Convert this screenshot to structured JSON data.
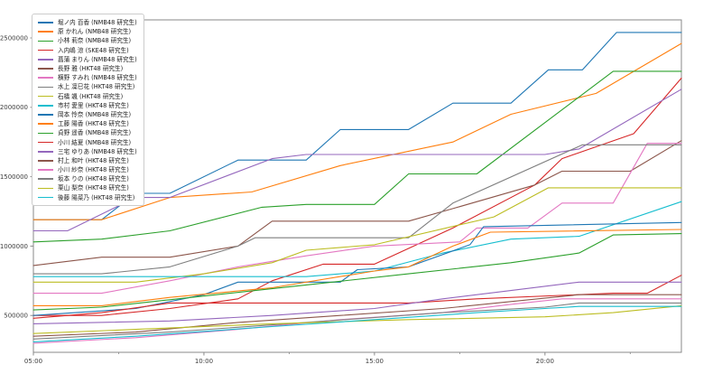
{
  "figure": {
    "background": "#ffffff",
    "axis_color": "#8a8a8a",
    "tick_label_color": "#3c3c3c"
  },
  "chart_data": {
    "type": "line",
    "title": "",
    "xlabel": "",
    "ylabel": "",
    "grid": false,
    "legend_position": "upper-left",
    "x_unit": "time (hour of day)",
    "xlim": [
      5,
      24
    ],
    "ylim": [
      230000,
      2630000
    ],
    "x_ticks": [
      {
        "h": 5,
        "label": "05:00"
      },
      {
        "h": 10,
        "label": "10:00"
      },
      {
        "h": 15,
        "label": "15:00"
      },
      {
        "h": 20,
        "label": "20:00"
      }
    ],
    "x_minor_ticks": [
      7.5,
      12.5,
      17.5,
      22.5
    ],
    "y_ticks": [
      {
        "v": 500000,
        "label": "500000"
      },
      {
        "v": 1000000,
        "label": "1000000"
      },
      {
        "v": 1500000,
        "label": "1500000"
      },
      {
        "v": 2000000,
        "label": "2000000"
      },
      {
        "v": 2500000,
        "label": "2500000"
      }
    ],
    "series": [
      {
        "name": "堀ノ内 百香 (NMB48 研究生)",
        "color": "#1f77b4",
        "points": [
          [
            5,
            1190000
          ],
          [
            7,
            1190000
          ],
          [
            8,
            1380000
          ],
          [
            9,
            1380000
          ],
          [
            11,
            1620000
          ],
          [
            13,
            1620000
          ],
          [
            14,
            1840000
          ],
          [
            16,
            1840000
          ],
          [
            17.3,
            2030000
          ],
          [
            19,
            2030000
          ],
          [
            20.1,
            2270000
          ],
          [
            21.1,
            2270000
          ],
          [
            22.1,
            2540000
          ],
          [
            24,
            2540000
          ]
        ]
      },
      {
        "name": "原 かれん (NMB48 研究生)",
        "color": "#ff7f0e",
        "points": [
          [
            5,
            1190000
          ],
          [
            7,
            1190000
          ],
          [
            9,
            1350000
          ],
          [
            11.4,
            1390000
          ],
          [
            14,
            1580000
          ],
          [
            17.3,
            1750000
          ],
          [
            19,
            1950000
          ],
          [
            21.5,
            2100000
          ],
          [
            24,
            2460000
          ]
        ]
      },
      {
        "name": "小林 莉奈 (NMB48 研究生)",
        "color": "#2ca02c",
        "points": [
          [
            5,
            1030000
          ],
          [
            7,
            1050000
          ],
          [
            9,
            1110000
          ],
          [
            11.7,
            1280000
          ],
          [
            13,
            1300000
          ],
          [
            15,
            1300000
          ],
          [
            16,
            1520000
          ],
          [
            18,
            1520000
          ],
          [
            22,
            2260000
          ],
          [
            24,
            2260000
          ]
        ]
      },
      {
        "name": "入内嶋 涼 (SKE48 研究生)",
        "color": "#d62728",
        "points": [
          [
            5,
            500000
          ],
          [
            7,
            500000
          ],
          [
            9,
            550000
          ],
          [
            11,
            620000
          ],
          [
            12,
            750000
          ],
          [
            13.5,
            870000
          ],
          [
            15,
            870000
          ],
          [
            17.3,
            1130000
          ],
          [
            19.7,
            1440000
          ],
          [
            20.5,
            1630000
          ],
          [
            22.6,
            1810000
          ],
          [
            24,
            2210000
          ]
        ]
      },
      {
        "name": "菖蒲 まりん (NMB48 研究生)",
        "color": "#9467bd",
        "points": [
          [
            5,
            1110000
          ],
          [
            6,
            1110000
          ],
          [
            8,
            1350000
          ],
          [
            9,
            1350000
          ],
          [
            12,
            1630000
          ],
          [
            13,
            1660000
          ],
          [
            20,
            1660000
          ],
          [
            21,
            1700000
          ],
          [
            24,
            2130000
          ]
        ]
      },
      {
        "name": "長野 雅 (HKT48 研究生)",
        "color": "#8c564b",
        "points": [
          [
            5,
            860000
          ],
          [
            7,
            920000
          ],
          [
            9,
            920000
          ],
          [
            11,
            1000000
          ],
          [
            12,
            1180000
          ],
          [
            16,
            1180000
          ],
          [
            17.3,
            1270000
          ],
          [
            19.7,
            1440000
          ],
          [
            20.5,
            1540000
          ],
          [
            22.5,
            1540000
          ],
          [
            24,
            1760000
          ]
        ]
      },
      {
        "name": "横野 すみれ (NMB48 研究生)",
        "color": "#e377c2",
        "points": [
          [
            5,
            660000
          ],
          [
            7,
            660000
          ],
          [
            9,
            750000
          ],
          [
            11,
            850000
          ],
          [
            13,
            930000
          ],
          [
            15,
            1000000
          ],
          [
            17.5,
            1030000
          ],
          [
            18,
            1130000
          ],
          [
            19.5,
            1130000
          ],
          [
            20.5,
            1310000
          ],
          [
            22,
            1310000
          ],
          [
            23,
            1740000
          ],
          [
            24,
            1740000
          ]
        ]
      },
      {
        "name": "水上 凜巳花 (HKT48 研究生)",
        "color": "#7f7f7f",
        "points": [
          [
            5,
            800000
          ],
          [
            7,
            800000
          ],
          [
            9,
            850000
          ],
          [
            11,
            1000000
          ],
          [
            11.5,
            1060000
          ],
          [
            16,
            1060000
          ],
          [
            17.3,
            1310000
          ],
          [
            21.1,
            1730000
          ],
          [
            24,
            1730000
          ]
        ]
      },
      {
        "name": "石橋 颯 (HKT48 研究生)",
        "color": "#bcbd22",
        "points": [
          [
            5,
            740000
          ],
          [
            8,
            740000
          ],
          [
            10,
            800000
          ],
          [
            12,
            880000
          ],
          [
            13,
            970000
          ],
          [
            15,
            1010000
          ],
          [
            18.5,
            1210000
          ],
          [
            20.1,
            1420000
          ],
          [
            24,
            1420000
          ]
        ]
      },
      {
        "name": "市村 愛里 (HKT48 研究生)",
        "color": "#17becf",
        "points": [
          [
            5,
            780000
          ],
          [
            13,
            780000
          ],
          [
            15,
            820000
          ],
          [
            17,
            950000
          ],
          [
            19,
            1050000
          ],
          [
            21,
            1070000
          ],
          [
            24,
            1320000
          ]
        ]
      },
      {
        "name": "岡本 怜奈 (NMB48 研究生)",
        "color": "#1f77b4",
        "points": [
          [
            5,
            500000
          ],
          [
            8,
            550000
          ],
          [
            10,
            650000
          ],
          [
            11,
            740000
          ],
          [
            14,
            740000
          ],
          [
            14.5,
            830000
          ],
          [
            16,
            850000
          ],
          [
            17.8,
            1010000
          ],
          [
            18.2,
            1140000
          ],
          [
            24,
            1170000
          ]
        ]
      },
      {
        "name": "工藤 陽香 (HKT48 研究生)",
        "color": "#ff7f0e",
        "points": [
          [
            5,
            570000
          ],
          [
            7,
            570000
          ],
          [
            9,
            630000
          ],
          [
            12,
            700000
          ],
          [
            15,
            820000
          ],
          [
            16,
            850000
          ],
          [
            17.3,
            1000000
          ],
          [
            18.4,
            1100000
          ],
          [
            24,
            1120000
          ]
        ]
      },
      {
        "name": "貞野 遥香 (NMB48 研究生)",
        "color": "#2ca02c",
        "points": [
          [
            5,
            540000
          ],
          [
            7,
            560000
          ],
          [
            10,
            640000
          ],
          [
            13,
            720000
          ],
          [
            16,
            800000
          ],
          [
            19,
            880000
          ],
          [
            21,
            950000
          ],
          [
            22,
            1080000
          ],
          [
            24,
            1090000
          ]
        ]
      },
      {
        "name": "小川 結夏 (NMB48 研究生)",
        "color": "#d62728",
        "points": [
          [
            5,
            480000
          ],
          [
            7,
            520000
          ],
          [
            9,
            590000
          ],
          [
            16,
            590000
          ],
          [
            18,
            620000
          ],
          [
            22,
            660000
          ],
          [
            23,
            660000
          ],
          [
            24,
            790000
          ]
        ]
      },
      {
        "name": "三宅 ゆりあ (NMB48 研究生)",
        "color": "#9467bd",
        "points": [
          [
            5,
            440000
          ],
          [
            9,
            460000
          ],
          [
            12,
            500000
          ],
          [
            15,
            550000
          ],
          [
            17,
            620000
          ],
          [
            19,
            680000
          ],
          [
            21,
            740000
          ],
          [
            24,
            740000
          ]
        ]
      },
      {
        "name": "村上 和叶 (HKT48 研究生)",
        "color": "#8c564b",
        "points": [
          [
            5,
            350000
          ],
          [
            8,
            380000
          ],
          [
            11,
            450000
          ],
          [
            14,
            500000
          ],
          [
            17,
            550000
          ],
          [
            19,
            600000
          ],
          [
            21,
            650000
          ],
          [
            24,
            650000
          ]
        ]
      },
      {
        "name": "小川 紗奈 (HKT48 研究生)",
        "color": "#e377c2",
        "points": [
          [
            5,
            300000
          ],
          [
            8,
            340000
          ],
          [
            11,
            400000
          ],
          [
            14,
            470000
          ],
          [
            17,
            520000
          ],
          [
            19,
            580000
          ],
          [
            20.5,
            620000
          ],
          [
            24,
            620000
          ]
        ]
      },
      {
        "name": "坂本 りの (HKT48 研究生)",
        "color": "#7f7f7f",
        "points": [
          [
            5,
            330000
          ],
          [
            9,
            380000
          ],
          [
            13,
            450000
          ],
          [
            17,
            520000
          ],
          [
            20,
            560000
          ],
          [
            21,
            590000
          ],
          [
            24,
            590000
          ]
        ]
      },
      {
        "name": "栗山 梨奈 (HKT48 研究生)",
        "color": "#bcbd22",
        "points": [
          [
            5,
            370000
          ],
          [
            8,
            400000
          ],
          [
            12,
            440000
          ],
          [
            16,
            470000
          ],
          [
            20,
            490000
          ],
          [
            22,
            520000
          ],
          [
            24,
            570000
          ]
        ]
      },
      {
        "name": "後藤 陽菜乃 (HKT48 研究生)",
        "color": "#17becf",
        "points": [
          [
            5,
            310000
          ],
          [
            8,
            350000
          ],
          [
            12,
            420000
          ],
          [
            15,
            470000
          ],
          [
            18,
            520000
          ],
          [
            20,
            550000
          ],
          [
            21,
            565000
          ],
          [
            24,
            565000
          ]
        ]
      }
    ]
  }
}
